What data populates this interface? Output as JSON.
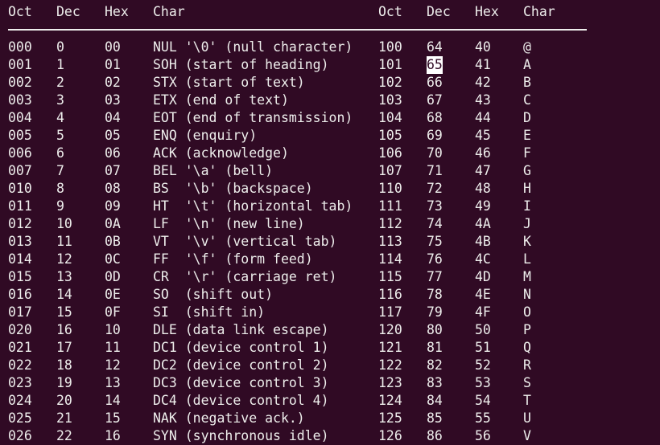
{
  "header": [
    "Oct",
    "Dec",
    "Hex",
    "Char",
    "Oct",
    "Dec",
    "Hex",
    "Char"
  ],
  "cursor": {
    "row": 1,
    "column": "dec2"
  },
  "rows": [
    [
      "000",
      "0",
      "00",
      "NUL '\\0' (null character)",
      "100",
      "64",
      "40",
      "@"
    ],
    [
      "001",
      "1",
      "01",
      "SOH (start of heading)",
      "101",
      "65",
      "41",
      "A"
    ],
    [
      "002",
      "2",
      "02",
      "STX (start of text)",
      "102",
      "66",
      "42",
      "B"
    ],
    [
      "003",
      "3",
      "03",
      "ETX (end of text)",
      "103",
      "67",
      "43",
      "C"
    ],
    [
      "004",
      "4",
      "04",
      "EOT (end of transmission)",
      "104",
      "68",
      "44",
      "D"
    ],
    [
      "005",
      "5",
      "05",
      "ENQ (enquiry)",
      "105",
      "69",
      "45",
      "E"
    ],
    [
      "006",
      "6",
      "06",
      "ACK (acknowledge)",
      "106",
      "70",
      "46",
      "F"
    ],
    [
      "007",
      "7",
      "07",
      "BEL '\\a' (bell)",
      "107",
      "71",
      "47",
      "G"
    ],
    [
      "010",
      "8",
      "08",
      "BS  '\\b' (backspace)",
      "110",
      "72",
      "48",
      "H"
    ],
    [
      "011",
      "9",
      "09",
      "HT  '\\t' (horizontal tab)",
      "111",
      "73",
      "49",
      "I"
    ],
    [
      "012",
      "10",
      "0A",
      "LF  '\\n' (new line)",
      "112",
      "74",
      "4A",
      "J"
    ],
    [
      "013",
      "11",
      "0B",
      "VT  '\\v' (vertical tab)",
      "113",
      "75",
      "4B",
      "K"
    ],
    [
      "014",
      "12",
      "0C",
      "FF  '\\f' (form feed)",
      "114",
      "76",
      "4C",
      "L"
    ],
    [
      "015",
      "13",
      "0D",
      "CR  '\\r' (carriage ret)",
      "115",
      "77",
      "4D",
      "M"
    ],
    [
      "016",
      "14",
      "0E",
      "SO  (shift out)",
      "116",
      "78",
      "4E",
      "N"
    ],
    [
      "017",
      "15",
      "0F",
      "SI  (shift in)",
      "117",
      "79",
      "4F",
      "O"
    ],
    [
      "020",
      "16",
      "10",
      "DLE (data link escape)",
      "120",
      "80",
      "50",
      "P"
    ],
    [
      "021",
      "17",
      "11",
      "DC1 (device control 1)",
      "121",
      "81",
      "51",
      "Q"
    ],
    [
      "022",
      "18",
      "12",
      "DC2 (device control 2)",
      "122",
      "82",
      "52",
      "R"
    ],
    [
      "023",
      "19",
      "13",
      "DC3 (device control 3)",
      "123",
      "83",
      "53",
      "S"
    ],
    [
      "024",
      "20",
      "14",
      "DC4 (device control 4)",
      "124",
      "84",
      "54",
      "T"
    ],
    [
      "025",
      "21",
      "15",
      "NAK (negative ack.)",
      "125",
      "85",
      "55",
      "U"
    ],
    [
      "026",
      "22",
      "16",
      "SYN (synchronous idle)",
      "126",
      "86",
      "56",
      "V"
    ]
  ]
}
